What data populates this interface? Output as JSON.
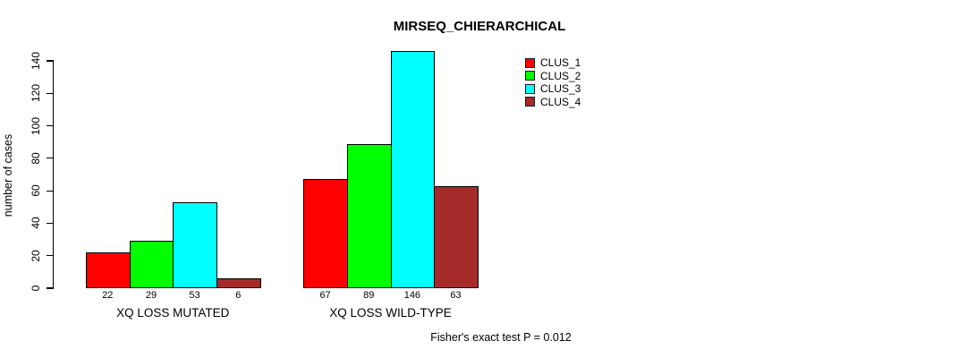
{
  "chart_data": {
    "type": "bar",
    "title": "MIRSEQ_CHIERARCHICAL",
    "ylabel": "number of cases",
    "xlabel": "",
    "categories": [
      "XQ LOSS MUTATED",
      "XQ LOSS WILD-TYPE"
    ],
    "series": [
      {
        "name": "CLUS_1",
        "color": "#ff0000",
        "values": [
          22,
          67
        ]
      },
      {
        "name": "CLUS_2",
        "color": "#00ff00",
        "values": [
          29,
          89
        ]
      },
      {
        "name": "CLUS_3",
        "color": "#00ffff",
        "values": [
          53,
          146
        ]
      },
      {
        "name": "CLUS_4",
        "color": "#a52a2a",
        "values": [
          6,
          63
        ]
      }
    ],
    "yticks": [
      0,
      20,
      40,
      60,
      80,
      100,
      120,
      140
    ],
    "ylim": [
      0,
      140
    ],
    "grid": false,
    "legend_position": "top-right",
    "bar_value_labels_shown": true,
    "annotation": "Fisher's exact test P = 0.012"
  }
}
